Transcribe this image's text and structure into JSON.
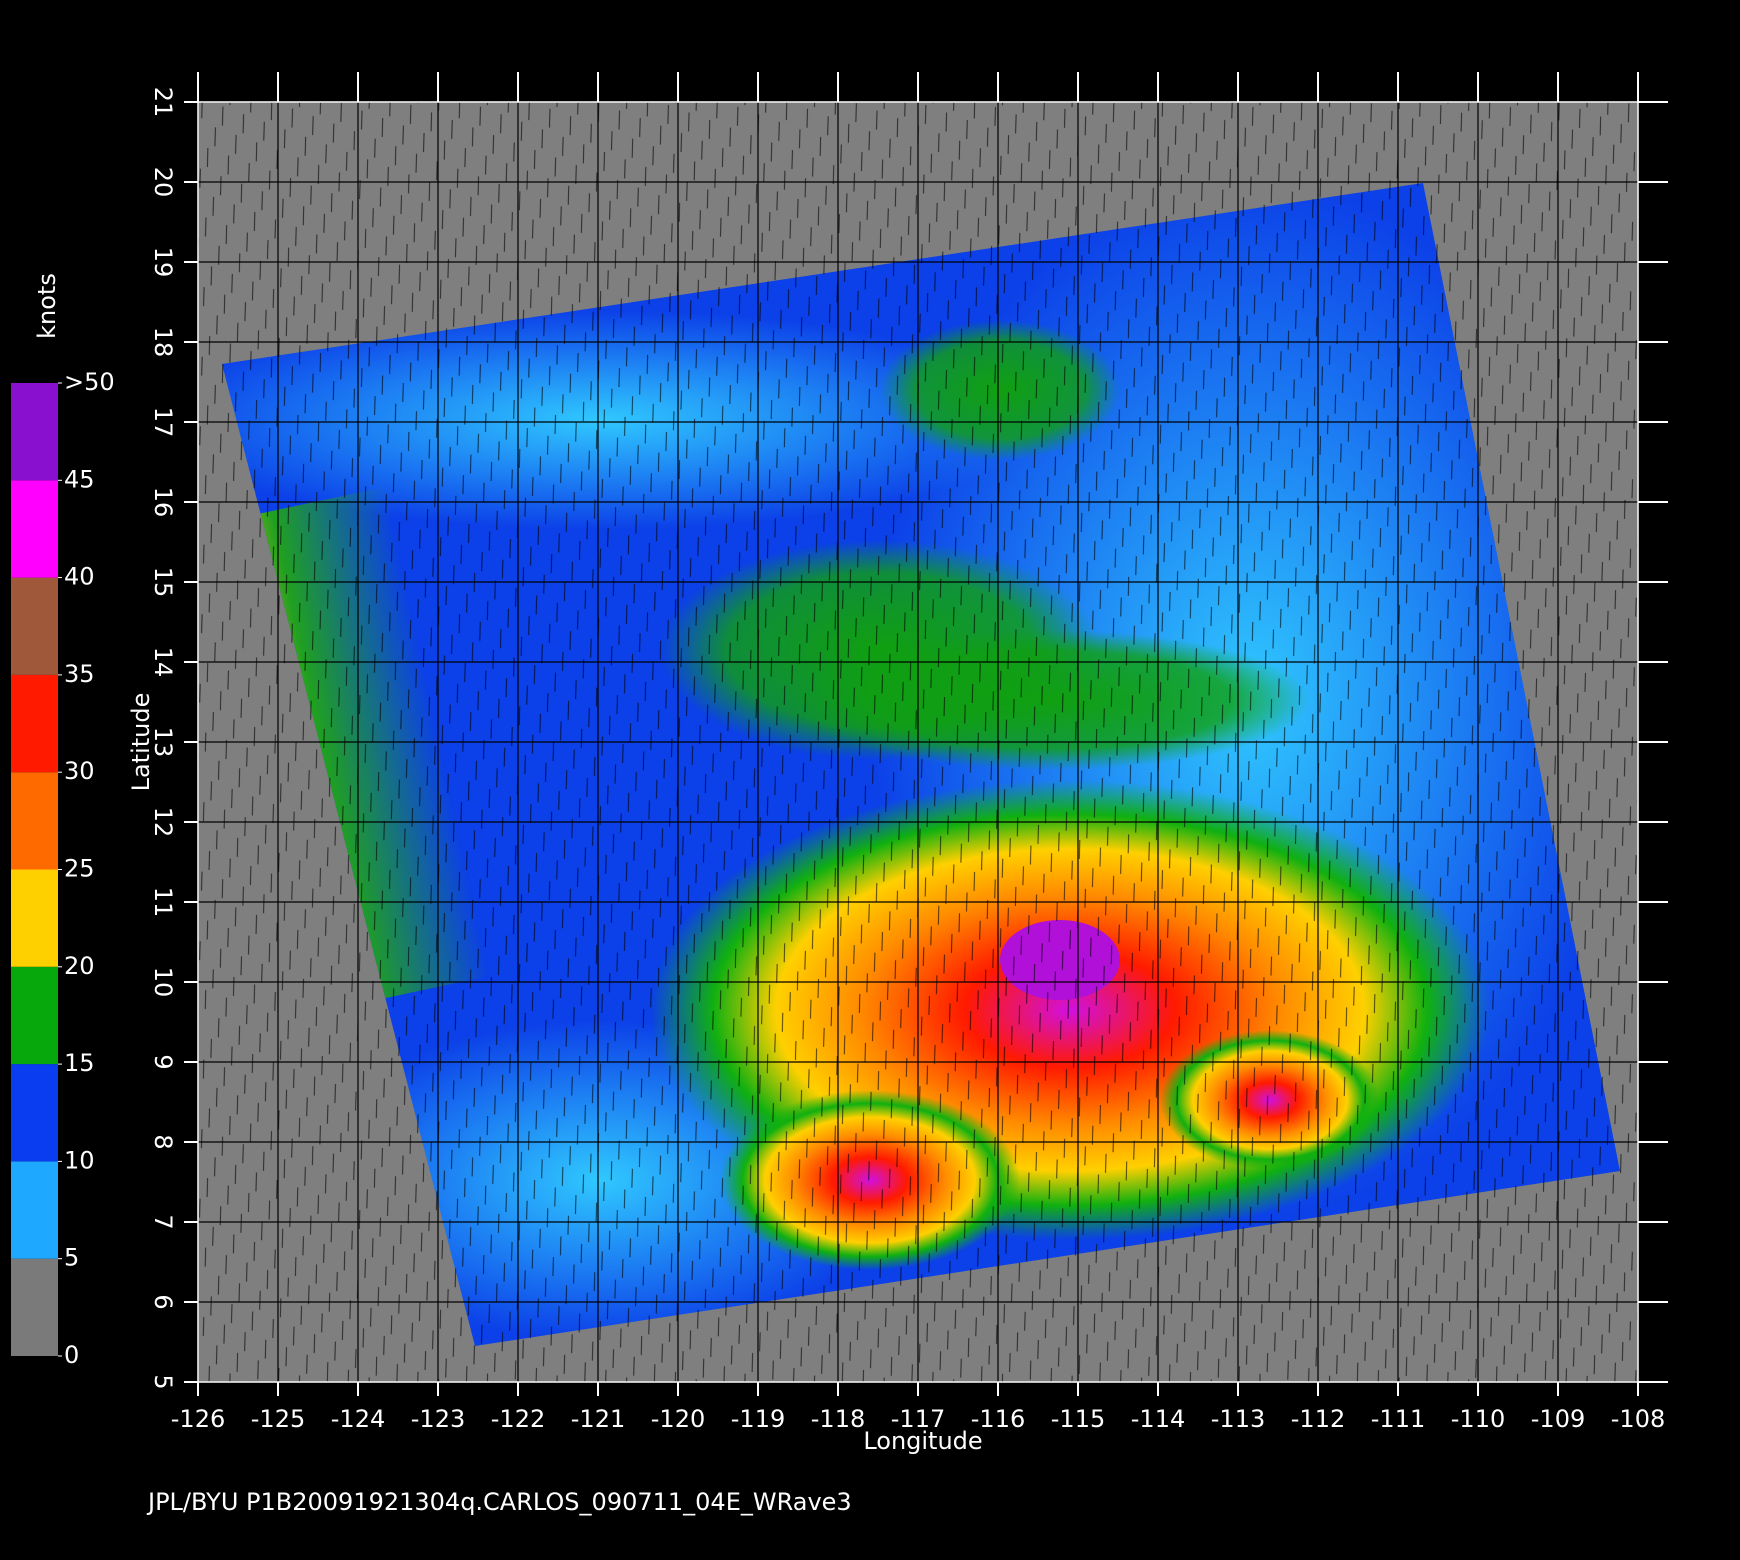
{
  "chart_data": {
    "type": "map",
    "title": "JPL/BYU  P1B20091921304q.CARLOS_090711_04E_WRave3",
    "x_label": "Longitude",
    "y_label": "Latitude",
    "xlim": [
      -126,
      -108
    ],
    "ylim": [
      5,
      21
    ],
    "xticks": [
      -126,
      -125,
      -124,
      -123,
      -122,
      -121,
      -120,
      -119,
      -118,
      -117,
      -116,
      -115,
      -114,
      -113,
      -112,
      -111,
      -110,
      -109,
      -108
    ],
    "yticks": [
      5,
      6,
      7,
      8,
      9,
      10,
      11,
      12,
      13,
      14,
      15,
      16,
      17,
      18,
      19,
      20,
      21
    ],
    "grid": true,
    "colorbar": {
      "label": "knots",
      "ticks": [
        0,
        5,
        10,
        15,
        20,
        25,
        30,
        35,
        40,
        45,
        {
          "value": 50,
          "label": ">50"
        }
      ],
      "colors": [
        "#7a7a7a",
        "#1ea8ff",
        "#0a3cf0",
        "#07a80b",
        "#ffd000",
        "#ff6a00",
        "#ff1a00",
        "#a0583a",
        "#ff00ff",
        "#8a10d0"
      ]
    }
  }
}
